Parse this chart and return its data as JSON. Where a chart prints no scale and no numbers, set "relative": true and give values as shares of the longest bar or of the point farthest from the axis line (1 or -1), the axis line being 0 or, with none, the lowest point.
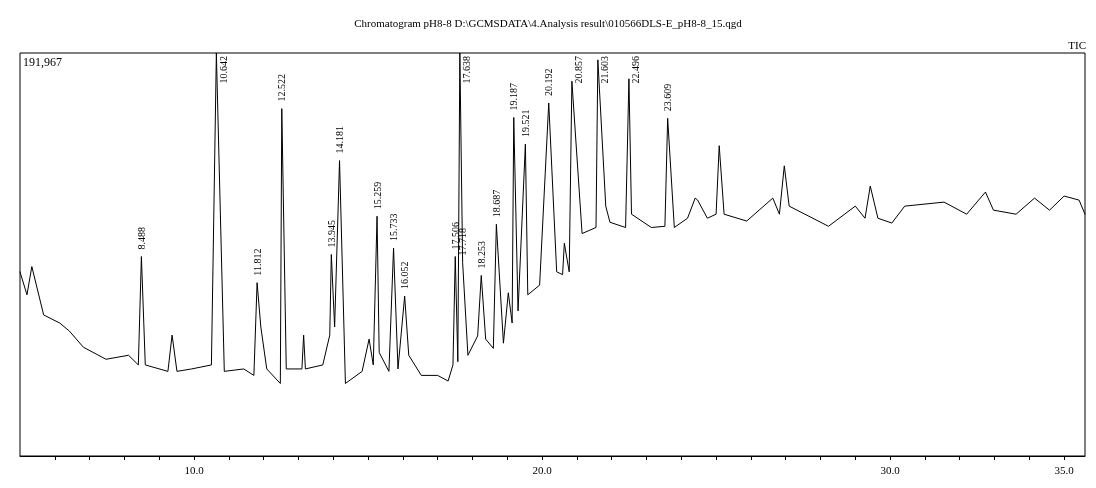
{
  "chart_data": {
    "type": "line",
    "title": "Chromatogram pH8-8 D:\\GCMSDATA\\4.Analysis result\\010566DLS-E_pH8-8_15.qgd",
    "relative": true,
    "grid": false,
    "marker": "none",
    "line_style": "solid",
    "tick_labels": "x",
    "xlim": [
      5,
      35.6
    ],
    "xticks": [
      {
        "value": 6,
        "label": null
      },
      {
        "value": 7,
        "label": null
      },
      {
        "value": 8,
        "label": null
      },
      {
        "value": 9,
        "label": null
      },
      {
        "value": 10,
        "label": "10.0"
      },
      {
        "value": 11,
        "label": null
      },
      {
        "value": 12,
        "label": null
      },
      {
        "value": 13,
        "label": null
      },
      {
        "value": 14,
        "label": null
      },
      {
        "value": 15,
        "label": null
      },
      {
        "value": 16,
        "label": null
      },
      {
        "value": 17,
        "label": null
      },
      {
        "value": 18,
        "label": null
      },
      {
        "value": 19,
        "label": null
      },
      {
        "value": 20,
        "label": "20.0"
      },
      {
        "value": 21,
        "label": null
      },
      {
        "value": 22,
        "label": null
      },
      {
        "value": 23,
        "label": null
      },
      {
        "value": 24,
        "label": null
      },
      {
        "value": 25,
        "label": null
      },
      {
        "value": 26,
        "label": null
      },
      {
        "value": 27,
        "label": null
      },
      {
        "value": 28,
        "label": null
      },
      {
        "value": 29,
        "label": null
      },
      {
        "value": 30,
        "label": "30.0"
      },
      {
        "value": 31,
        "label": null
      },
      {
        "value": 32,
        "label": null
      },
      {
        "value": 33,
        "label": null
      },
      {
        "value": 34,
        "label": null
      },
      {
        "value": 35,
        "label": "35.0"
      }
    ],
    "series": [
      {
        "color": "#000000",
        "x": [
          5.0,
          5.2,
          5.34,
          5.68,
          6.14,
          6.42,
          6.82,
          7.47,
          8.12,
          8.4,
          8.488,
          8.6,
          9.25,
          9.37,
          9.51,
          9.93,
          10.5,
          10.642,
          10.87,
          11.43,
          11.72,
          11.812,
          11.92,
          12.09,
          12.48,
          12.522,
          12.65,
          13.1,
          13.15,
          13.2,
          13.7,
          13.9,
          13.945,
          14.04,
          14.181,
          14.35,
          14.83,
          15.03,
          15.15,
          15.259,
          15.32,
          15.6,
          15.733,
          15.86,
          16.052,
          16.17,
          16.53,
          17.0,
          17.3,
          17.44,
          17.506,
          17.58,
          17.638,
          17.718,
          17.87,
          18.15,
          18.253,
          18.38,
          18.6,
          18.687,
          18.89,
          19.03,
          19.14,
          19.187,
          19.31,
          19.521,
          19.59,
          19.93,
          20.192,
          20.42,
          20.59,
          20.64,
          20.78,
          20.857,
          21.15,
          21.55,
          21.603,
          21.83,
          21.95,
          22.4,
          22.496,
          22.57,
          23.14,
          23.53,
          23.609,
          23.8,
          24.18,
          24.4,
          24.47,
          24.75,
          25.0,
          25.09,
          25.23,
          25.88,
          26.63,
          26.82,
          26.96,
          27.1,
          28.23,
          29.0,
          29.28,
          29.43,
          29.65,
          30.05,
          30.42,
          31.55,
          32.2,
          32.74,
          32.97,
          33.62,
          34.15,
          34.58,
          35.0,
          35.43,
          35.6
        ],
        "values": [
          0.457,
          0.4,
          0.47,
          0.35,
          0.33,
          0.31,
          0.27,
          0.24,
          0.25,
          0.226,
          0.495,
          0.226,
          0.21,
          0.3,
          0.21,
          0.216,
          0.226,
          1.0,
          0.21,
          0.216,
          0.2,
          0.43,
          0.32,
          0.216,
          0.18,
          0.862,
          0.216,
          0.216,
          0.3,
          0.216,
          0.226,
          0.3,
          0.5,
          0.32,
          0.733,
          0.18,
          0.21,
          0.29,
          0.226,
          0.595,
          0.257,
          0.21,
          0.516,
          0.216,
          0.397,
          0.25,
          0.2,
          0.2,
          0.186,
          0.226,
          0.495,
          0.234,
          1.0,
          0.48,
          0.25,
          0.298,
          0.448,
          0.29,
          0.267,
          0.575,
          0.28,
          0.405,
          0.33,
          0.84,
          0.36,
          0.774,
          0.4,
          0.424,
          0.876,
          0.457,
          0.45,
          0.528,
          0.457,
          0.93,
          0.552,
          0.567,
          0.983,
          0.62,
          0.58,
          0.567,
          0.936,
          0.6,
          0.567,
          0.57,
          0.838,
          0.567,
          0.59,
          0.64,
          0.635,
          0.59,
          0.6,
          0.77,
          0.6,
          0.583,
          0.64,
          0.6,
          0.72,
          0.62,
          0.57,
          0.62,
          0.59,
          0.67,
          0.59,
          0.578,
          0.62,
          0.63,
          0.6,
          0.655,
          0.61,
          0.6,
          0.64,
          0.61,
          0.645,
          0.635,
          0.6
        ]
      }
    ],
    "annotations": [
      "191,967",
      "TIC",
      {
        "text": "8.488",
        "x": 8.488,
        "y": 0.495
      },
      {
        "text": "10.642",
        "x": 10.642,
        "y": 1.0
      },
      {
        "text": "11.812",
        "x": 11.812,
        "y": 0.43
      },
      {
        "text": "12.522",
        "x": 12.522,
        "y": 0.862
      },
      {
        "text": "13.945",
        "x": 13.945,
        "y": 0.5
      },
      {
        "text": "14.181",
        "x": 14.181,
        "y": 0.733
      },
      {
        "text": "15.259",
        "x": 15.259,
        "y": 0.595
      },
      {
        "text": "15.733",
        "x": 15.733,
        "y": 0.516
      },
      {
        "text": "16.052",
        "x": 16.052,
        "y": 0.397
      },
      {
        "text": "17.506",
        "x": 17.506,
        "y": 0.495
      },
      {
        "text": "17.638",
        "x": 17.638,
        "y": 1.0
      },
      {
        "text": "17.718",
        "x": 17.718,
        "y": 0.48
      },
      {
        "text": "18.253",
        "x": 18.253,
        "y": 0.448
      },
      {
        "text": "18.687",
        "x": 18.687,
        "y": 0.575
      },
      {
        "text": "19.187",
        "x": 19.187,
        "y": 0.84
      },
      {
        "text": "19.521",
        "x": 19.521,
        "y": 0.774
      },
      {
        "text": "20.192",
        "x": 20.192,
        "y": 0.876
      },
      {
        "text": "20.857",
        "x": 20.857,
        "y": 0.93
      },
      {
        "text": "21.603",
        "x": 21.603,
        "y": 0.983
      },
      {
        "text": "22.496",
        "x": 22.496,
        "y": 0.936
      },
      {
        "text": "23.609",
        "x": 23.609,
        "y": 0.838
      }
    ]
  }
}
